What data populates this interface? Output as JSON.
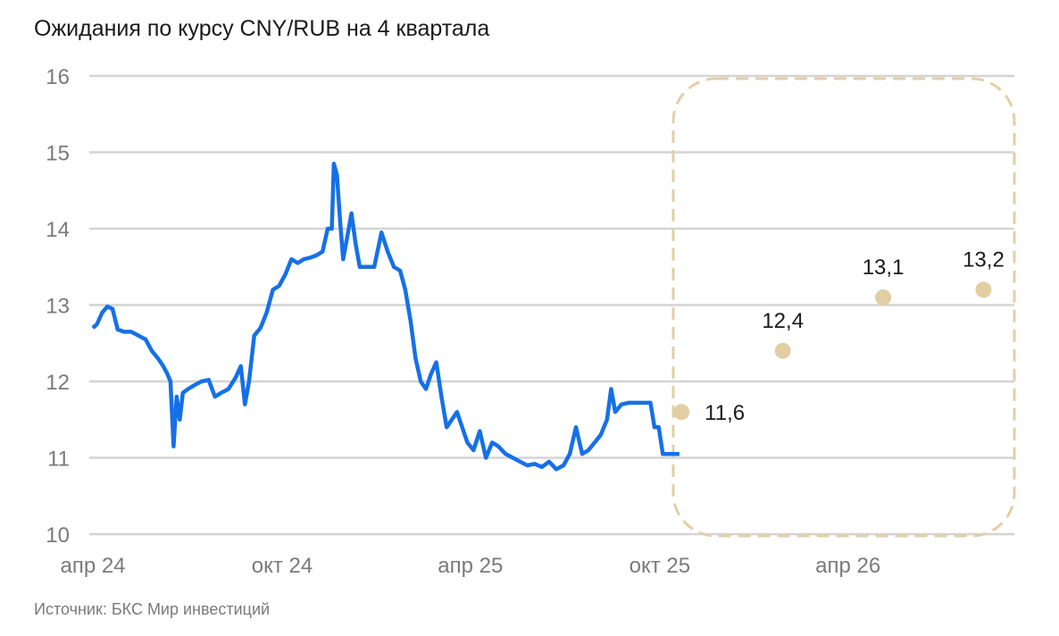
{
  "title": "Ожидания по курсу CNY/RUB на 4 квартала",
  "source": "Источник: БКС Мир инвестиций",
  "colors": {
    "line": "#1570e8",
    "forecast": "#e2ceA3",
    "frame": "#e2cfa6",
    "grid": "#d4d4d4",
    "axis_text": "#7a7a7a"
  },
  "chart_data": {
    "type": "line",
    "x_axis": {
      "type": "date",
      "ticks": [
        "апр 24",
        "окт 24",
        "апр 25",
        "окт 25",
        "апр 26"
      ]
    },
    "y_axis": {
      "ylim": [
        10,
        16
      ],
      "ticks": [
        "10",
        "11",
        "12",
        "13",
        "14",
        "15",
        "16"
      ]
    },
    "grid": true,
    "series": [
      {
        "values": [
          [
            "2024-04-01",
            12.7
          ],
          [
            "2024-04-05",
            12.75
          ],
          [
            "2024-04-10",
            12.9
          ],
          [
            "2024-04-15",
            12.98
          ],
          [
            "2024-04-20",
            12.95
          ],
          [
            "2024-04-25",
            12.68
          ],
          [
            "2024-05-01",
            12.65
          ],
          [
            "2024-05-08",
            12.65
          ],
          [
            "2024-05-15",
            12.6
          ],
          [
            "2024-05-22",
            12.55
          ],
          [
            "2024-05-28",
            12.4
          ],
          [
            "2024-06-03",
            12.3
          ],
          [
            "2024-06-08",
            12.2
          ],
          [
            "2024-06-12",
            12.1
          ],
          [
            "2024-06-15",
            12.0
          ],
          [
            "2024-06-18",
            11.15
          ],
          [
            "2024-06-21",
            11.8
          ],
          [
            "2024-06-24",
            11.5
          ],
          [
            "2024-06-27",
            11.85
          ],
          [
            "2024-07-02",
            11.9
          ],
          [
            "2024-07-08",
            11.95
          ],
          [
            "2024-07-15",
            12.0
          ],
          [
            "2024-07-22",
            12.02
          ],
          [
            "2024-07-28",
            11.8
          ],
          [
            "2024-08-03",
            11.85
          ],
          [
            "2024-08-10",
            11.9
          ],
          [
            "2024-08-17",
            12.05
          ],
          [
            "2024-08-22",
            12.2
          ],
          [
            "2024-08-26",
            11.7
          ],
          [
            "2024-08-30",
            12.0
          ],
          [
            "2024-09-04",
            12.6
          ],
          [
            "2024-09-10",
            12.7
          ],
          [
            "2024-09-16",
            12.9
          ],
          [
            "2024-09-22",
            13.2
          ],
          [
            "2024-09-28",
            13.25
          ],
          [
            "2024-10-04",
            13.4
          ],
          [
            "2024-10-10",
            13.6
          ],
          [
            "2024-10-16",
            13.55
          ],
          [
            "2024-10-22",
            13.6
          ],
          [
            "2024-10-28",
            13.62
          ],
          [
            "2024-11-03",
            13.65
          ],
          [
            "2024-11-09",
            13.7
          ],
          [
            "2024-11-14",
            14.0
          ],
          [
            "2024-11-18",
            14.0
          ],
          [
            "2024-11-20",
            14.85
          ],
          [
            "2024-11-23",
            14.7
          ],
          [
            "2024-11-26",
            14.1
          ],
          [
            "2024-11-29",
            13.6
          ],
          [
            "2024-12-03",
            13.9
          ],
          [
            "2024-12-07",
            14.2
          ],
          [
            "2024-12-11",
            13.8
          ],
          [
            "2024-12-15",
            13.5
          ],
          [
            "2024-12-22",
            13.5
          ],
          [
            "2024-12-29",
            13.5
          ],
          [
            "2025-01-05",
            13.95
          ],
          [
            "2025-01-11",
            13.7
          ],
          [
            "2025-01-17",
            13.5
          ],
          [
            "2025-01-23",
            13.45
          ],
          [
            "2025-01-28",
            13.2
          ],
          [
            "2025-02-02",
            12.8
          ],
          [
            "2025-02-07",
            12.3
          ],
          [
            "2025-02-12",
            12.0
          ],
          [
            "2025-02-17",
            11.9
          ],
          [
            "2025-02-22",
            12.1
          ],
          [
            "2025-02-27",
            12.25
          ],
          [
            "2025-03-04",
            11.8
          ],
          [
            "2025-03-09",
            11.4
          ],
          [
            "2025-03-14",
            11.5
          ],
          [
            "2025-03-19",
            11.6
          ],
          [
            "2025-03-24",
            11.4
          ],
          [
            "2025-03-29",
            11.2
          ],
          [
            "2025-04-04",
            11.1
          ],
          [
            "2025-04-10",
            11.35
          ],
          [
            "2025-04-16",
            11.0
          ],
          [
            "2025-04-22",
            11.2
          ],
          [
            "2025-04-28",
            11.15
          ],
          [
            "2025-05-05",
            11.05
          ],
          [
            "2025-05-12",
            11.0
          ],
          [
            "2025-05-19",
            10.95
          ],
          [
            "2025-05-26",
            10.9
          ],
          [
            "2025-06-02",
            10.92
          ],
          [
            "2025-06-09",
            10.88
          ],
          [
            "2025-06-16",
            10.95
          ],
          [
            "2025-06-23",
            10.85
          ],
          [
            "2025-06-30",
            10.9
          ],
          [
            "2025-07-06",
            11.05
          ],
          [
            "2025-07-12",
            11.4
          ],
          [
            "2025-07-18",
            11.05
          ],
          [
            "2025-07-24",
            11.1
          ],
          [
            "2025-07-30",
            11.2
          ],
          [
            "2025-08-05",
            11.3
          ],
          [
            "2025-08-11",
            11.5
          ],
          [
            "2025-08-15",
            11.9
          ],
          [
            "2025-08-19",
            11.6
          ],
          [
            "2025-08-25",
            11.7
          ],
          [
            "2025-09-01",
            11.72
          ],
          [
            "2025-09-08",
            11.72
          ],
          [
            "2025-09-15",
            11.72
          ],
          [
            "2025-09-22",
            11.72
          ],
          [
            "2025-09-26",
            11.4
          ],
          [
            "2025-09-30",
            11.4
          ],
          [
            "2025-10-04",
            11.05
          ],
          [
            "2025-10-12",
            11.05
          ],
          [
            "2025-10-20",
            11.05
          ]
        ]
      },
      {
        "type": "scatter",
        "values": [
          [
            "2025-10-22",
            11.6
          ],
          [
            "2026-01-28",
            12.4
          ],
          [
            "2026-05-05",
            13.1
          ],
          [
            "2026-08-10",
            13.2
          ]
        ],
        "labels": [
          "11,6",
          "12,4",
          "13,1",
          "13,2"
        ]
      }
    ]
  }
}
